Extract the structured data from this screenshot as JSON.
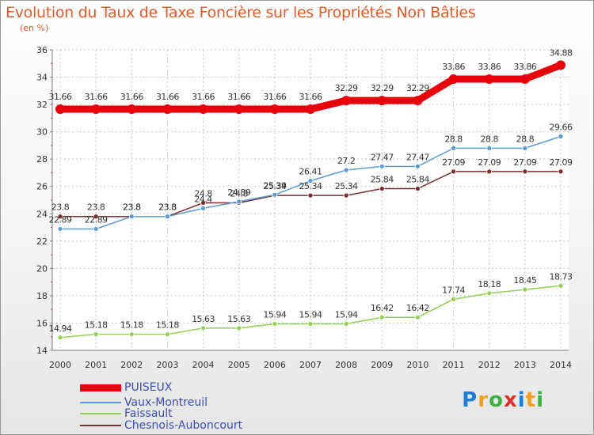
{
  "title": "Evolution du Taux de Taxe Foncière sur les Propriétés Non Bâties",
  "unit_label": "(en %)",
  "logo": {
    "letters": [
      "P",
      "r",
      "o",
      "x",
      "i",
      "t",
      "i"
    ],
    "colors": [
      "#1f7fd6",
      "#f0a020",
      "#3cb043",
      "#e0302a",
      "#1f7fd6",
      "#f0a020",
      "#3cb043"
    ]
  },
  "chart_data": {
    "type": "line",
    "x": [
      "2000",
      "2001",
      "2002",
      "2003",
      "2004",
      "2005",
      "2006",
      "2007",
      "2008",
      "2009",
      "2010",
      "2011",
      "2012",
      "2013",
      "2014"
    ],
    "ylim": [
      14,
      36
    ],
    "yticks": [
      14,
      16,
      18,
      20,
      22,
      24,
      26,
      28,
      30,
      32,
      34,
      36
    ],
    "grid": true,
    "legend_position": "bottom-left",
    "series": [
      {
        "name": "PUISEUX",
        "color": "#e8000b",
        "values": [
          31.66,
          31.66,
          31.66,
          31.66,
          31.66,
          31.66,
          31.66,
          31.66,
          32.29,
          32.29,
          32.29,
          33.86,
          33.86,
          33.86,
          34.88
        ],
        "labels": [
          "31.66",
          "31.66",
          "31.66",
          "31.66",
          "31.66",
          "31.66",
          "31.66",
          "31.66",
          "32.29",
          "32.29",
          "32.29",
          "33.86",
          "33.86",
          "33.86",
          "34.88"
        ]
      },
      {
        "name": "Vaux-Montreuil",
        "color": "#5b9bd5",
        "values": [
          22.89,
          22.89,
          23.8,
          23.8,
          24.4,
          24.89,
          25.39,
          26.41,
          27.2,
          27.47,
          27.47,
          28.8,
          28.8,
          28.8,
          29.66
        ],
        "labels": [
          "22.89",
          "22.89",
          "23.8",
          "23.8",
          "24.4",
          "24.89",
          "25.39",
          "26.41",
          "27.2",
          "27.47",
          "27.47",
          "28.8",
          "28.8",
          "28.8",
          "29.66"
        ]
      },
      {
        "name": "Faissault",
        "color": "#92d050",
        "values": [
          14.94,
          15.18,
          15.18,
          15.18,
          15.63,
          15.63,
          15.94,
          15.94,
          15.94,
          16.42,
          16.42,
          17.74,
          18.18,
          18.45,
          18.73
        ],
        "labels": [
          "14.94",
          "15.18",
          "15.18",
          "15.18",
          "15.63",
          "15.63",
          "15.94",
          "15.94",
          "15.94",
          "16.42",
          "16.42",
          "17.74",
          "18.18",
          "18.45",
          "18.73"
        ]
      },
      {
        "name": "Chesnois-Auboncourt",
        "color": "#7b2c2c",
        "values": [
          23.8,
          23.8,
          23.8,
          23.8,
          24.8,
          24.8,
          25.34,
          25.34,
          25.34,
          25.84,
          25.84,
          27.09,
          27.09,
          27.09,
          27.09
        ],
        "labels": [
          "23.8",
          "23.8",
          "23.8",
          "23.8",
          "24.8",
          "24.8",
          "25.34",
          "25.34",
          "25.34",
          "25.84",
          "25.84",
          "27.09",
          "27.09",
          "27.09",
          "27.09"
        ]
      }
    ]
  }
}
